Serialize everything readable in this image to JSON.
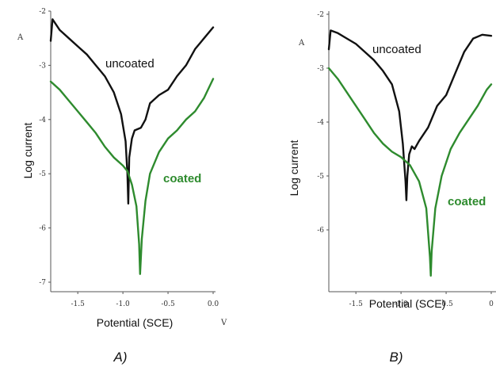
{
  "chart_data": [
    {
      "type": "line",
      "panel_caption": "A)",
      "xlabel": "Potential (SCE)",
      "ylabel": "Log current",
      "x_unit": "V",
      "y_unit": "A",
      "xlim": [
        -1.8,
        0.0
      ],
      "ylim": [
        -7.0,
        -2.0
      ],
      "x_ticks": [
        {
          "v": -1.5,
          "t": "-1.5"
        },
        {
          "v": -1.0,
          "t": "-1.0"
        },
        {
          "v": -0.5,
          "t": "-0.5"
        },
        {
          "v": 0.0,
          "t": "0.0"
        }
      ],
      "y_ticks": [
        {
          "v": -2,
          "t": "-2"
        },
        {
          "v": -3,
          "t": "-3"
        },
        {
          "v": -4,
          "t": "-4"
        },
        {
          "v": -5,
          "t": "-5"
        },
        {
          "v": -6,
          "t": "-6"
        },
        {
          "v": -7,
          "t": "-7"
        }
      ],
      "series": [
        {
          "name": "uncoated",
          "color": "#111111",
          "points": [
            [
              -1.8,
              -2.55
            ],
            [
              -1.78,
              -2.15
            ],
            [
              -1.7,
              -2.35
            ],
            [
              -1.6,
              -2.5
            ],
            [
              -1.5,
              -2.65
            ],
            [
              -1.4,
              -2.8
            ],
            [
              -1.3,
              -3.0
            ],
            [
              -1.2,
              -3.2
            ],
            [
              -1.1,
              -3.5
            ],
            [
              -1.02,
              -3.9
            ],
            [
              -0.97,
              -4.4
            ],
            [
              -0.95,
              -5.0
            ],
            [
              -0.94,
              -5.55
            ],
            [
              -0.93,
              -4.7
            ],
            [
              -0.9,
              -4.35
            ],
            [
              -0.87,
              -4.2
            ],
            [
              -0.8,
              -4.15
            ],
            [
              -0.75,
              -4.0
            ],
            [
              -0.7,
              -3.7
            ],
            [
              -0.6,
              -3.55
            ],
            [
              -0.5,
              -3.45
            ],
            [
              -0.4,
              -3.2
            ],
            [
              -0.3,
              -3.0
            ],
            [
              -0.2,
              -2.7
            ],
            [
              -0.1,
              -2.5
            ],
            [
              0.0,
              -2.3
            ]
          ]
        },
        {
          "name": "coated",
          "color": "#2e8b2e",
          "points": [
            [
              -1.8,
              -3.3
            ],
            [
              -1.7,
              -3.45
            ],
            [
              -1.6,
              -3.65
            ],
            [
              -1.5,
              -3.85
            ],
            [
              -1.4,
              -4.05
            ],
            [
              -1.3,
              -4.25
            ],
            [
              -1.2,
              -4.5
            ],
            [
              -1.1,
              -4.7
            ],
            [
              -1.0,
              -4.85
            ],
            [
              -0.95,
              -4.95
            ],
            [
              -0.9,
              -5.2
            ],
            [
              -0.85,
              -5.6
            ],
            [
              -0.82,
              -6.3
            ],
            [
              -0.81,
              -6.85
            ],
            [
              -0.79,
              -6.2
            ],
            [
              -0.75,
              -5.5
            ],
            [
              -0.7,
              -5.0
            ],
            [
              -0.6,
              -4.6
            ],
            [
              -0.5,
              -4.35
            ],
            [
              -0.4,
              -4.2
            ],
            [
              -0.3,
              -4.0
            ],
            [
              -0.2,
              -3.85
            ],
            [
              -0.1,
              -3.6
            ],
            [
              0.0,
              -3.25
            ]
          ]
        }
      ]
    },
    {
      "type": "line",
      "panel_caption": "B)",
      "xlabel": "Potential (SCE)",
      "ylabel": "Log current",
      "y_unit": "A",
      "xlim": [
        -1.8,
        0.0
      ],
      "ylim": [
        -7.0,
        -2.0
      ],
      "x_ticks": [
        {
          "v": -1.5,
          "t": "-1.5"
        },
        {
          "v": -1.0,
          "t": "-1.0"
        },
        {
          "v": -0.5,
          "t": "-0.5"
        },
        {
          "v": 0.0,
          "t": "0"
        }
      ],
      "y_ticks": [
        {
          "v": -2,
          "t": "-2"
        },
        {
          "v": -3,
          "t": "-3"
        },
        {
          "v": -4,
          "t": "-4"
        },
        {
          "v": -5,
          "t": "-5"
        },
        {
          "v": -6,
          "t": "-6"
        }
      ],
      "series": [
        {
          "name": "uncoated",
          "color": "#111111",
          "points": [
            [
              -1.8,
              -2.65
            ],
            [
              -1.78,
              -2.3
            ],
            [
              -1.7,
              -2.35
            ],
            [
              -1.6,
              -2.45
            ],
            [
              -1.5,
              -2.55
            ],
            [
              -1.4,
              -2.7
            ],
            [
              -1.3,
              -2.85
            ],
            [
              -1.2,
              -3.05
            ],
            [
              -1.1,
              -3.3
            ],
            [
              -1.02,
              -3.8
            ],
            [
              -0.98,
              -4.4
            ],
            [
              -0.95,
              -5.1
            ],
            [
              -0.94,
              -5.45
            ],
            [
              -0.93,
              -5.0
            ],
            [
              -0.91,
              -4.6
            ],
            [
              -0.88,
              -4.45
            ],
            [
              -0.85,
              -4.5
            ],
            [
              -0.8,
              -4.35
            ],
            [
              -0.7,
              -4.1
            ],
            [
              -0.6,
              -3.7
            ],
            [
              -0.5,
              -3.5
            ],
            [
              -0.4,
              -3.1
            ],
            [
              -0.3,
              -2.7
            ],
            [
              -0.2,
              -2.45
            ],
            [
              -0.1,
              -2.38
            ],
            [
              0.0,
              -2.4
            ]
          ]
        },
        {
          "name": "coated",
          "color": "#2e8b2e",
          "points": [
            [
              -1.8,
              -3.0
            ],
            [
              -1.7,
              -3.2
            ],
            [
              -1.6,
              -3.45
            ],
            [
              -1.5,
              -3.7
            ],
            [
              -1.4,
              -3.95
            ],
            [
              -1.3,
              -4.2
            ],
            [
              -1.2,
              -4.4
            ],
            [
              -1.1,
              -4.55
            ],
            [
              -1.0,
              -4.65
            ],
            [
              -0.9,
              -4.8
            ],
            [
              -0.8,
              -5.1
            ],
            [
              -0.72,
              -5.6
            ],
            [
              -0.68,
              -6.5
            ],
            [
              -0.67,
              -6.85
            ],
            [
              -0.66,
              -6.4
            ],
            [
              -0.62,
              -5.6
            ],
            [
              -0.55,
              -5.0
            ],
            [
              -0.45,
              -4.5
            ],
            [
              -0.35,
              -4.2
            ],
            [
              -0.25,
              -3.95
            ],
            [
              -0.15,
              -3.7
            ],
            [
              -0.05,
              -3.4
            ],
            [
              0.0,
              -3.3
            ]
          ]
        }
      ]
    }
  ]
}
